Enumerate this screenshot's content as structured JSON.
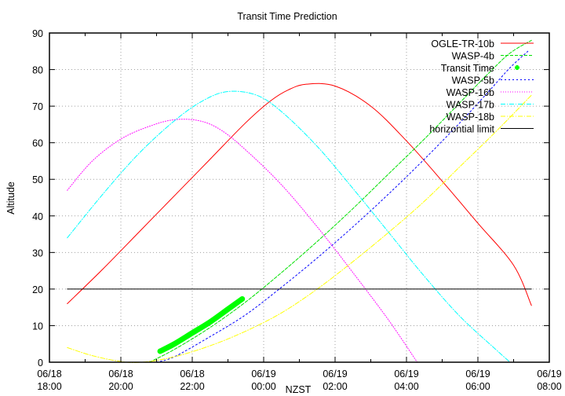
{
  "chart_data": {
    "type": "line",
    "title": "Transit Time Prediction",
    "xlabel": "NZST",
    "ylabel": "Altitude",
    "ylim": [
      0,
      90
    ],
    "yticks": [
      0,
      10,
      20,
      30,
      40,
      50,
      60,
      70,
      80,
      90
    ],
    "xlim_hours": [
      0,
      14
    ],
    "xticks": [
      {
        "h": 0,
        "line1": "06/18",
        "line2": "18:00"
      },
      {
        "h": 2,
        "line1": "06/18",
        "line2": "20:00"
      },
      {
        "h": 4,
        "line1": "06/18",
        "line2": "22:00"
      },
      {
        "h": 6,
        "line1": "06/19",
        "line2": "00:00"
      },
      {
        "h": 8,
        "line1": "06/19",
        "line2": "02:00"
      },
      {
        "h": 10,
        "line1": "06/19",
        "line2": "04:00"
      },
      {
        "h": 12,
        "line1": "06/19",
        "line2": "06:00"
      },
      {
        "h": 14,
        "line1": "06/19",
        "line2": "08:00"
      }
    ],
    "grid": true,
    "legend_position": "top-right",
    "series": [
      {
        "name": "OGLE-TR-10b",
        "color": "#ff0000",
        "dash": "",
        "width": 1,
        "x": [
          0.5,
          1.5,
          2.5,
          3.5,
          4.5,
          5.5,
          6.2,
          6.7,
          7.2,
          8.0,
          9.0,
          10.0,
          11.0,
          12.0,
          13.0,
          13.5
        ],
        "y": [
          16,
          25.5,
          35.5,
          45.5,
          55.5,
          65.5,
          71.5,
          74.5,
          76,
          75.5,
          70,
          60.5,
          49.5,
          38,
          26.5,
          15.5
        ]
      },
      {
        "name": "WASP-4b",
        "color": "#00e000",
        "dash": "4,2",
        "width": 1,
        "x": [
          2.8,
          3.5,
          4.5,
          5.5,
          6.5,
          7.5,
          8.5,
          9.5,
          10.5,
          11.5,
          12.3,
          12.9,
          13.5
        ],
        "y": [
          0,
          3.5,
          9.5,
          16.5,
          24.5,
          33,
          42,
          51.5,
          61,
          71,
          79,
          84.5,
          88
        ]
      },
      {
        "name": "Transit Time",
        "color": "#00ff00",
        "dash": "",
        "width": 7,
        "marker": "plus",
        "x": [
          3.1,
          3.5,
          4.0,
          4.5,
          5.0,
          5.4
        ],
        "y": [
          3,
          5,
          8,
          11,
          14.5,
          17.3
        ]
      },
      {
        "name": "WASP-5b",
        "color": "#0000ff",
        "dash": "2,3",
        "width": 1,
        "x": [
          3.0,
          3.5,
          4.5,
          5.5,
          6.5,
          7.5,
          8.5,
          9.5,
          10.5,
          11.5,
          12.3,
          12.9,
          13.4
        ],
        "y": [
          0,
          1.5,
          7,
          13,
          20.5,
          28.5,
          37,
          46,
          55.5,
          65.5,
          74,
          80.5,
          85
        ]
      },
      {
        "name": "WASP-16b",
        "color": "#ff00ff",
        "dash": "1,2",
        "width": 1,
        "x": [
          0.5,
          1.2,
          2.0,
          2.8,
          3.5,
          4.2,
          4.8,
          5.5,
          6.5,
          7.5,
          8.5,
          9.5,
          10.3
        ],
        "y": [
          47,
          55,
          61,
          64.5,
          66.3,
          66,
          63.5,
          58,
          48.5,
          37,
          24.5,
          11.5,
          0
        ]
      },
      {
        "name": "WASP-17b",
        "color": "#00ffff",
        "dash": "6,2,1,2",
        "width": 1,
        "x": [
          0.5,
          1.5,
          2.5,
          3.5,
          4.3,
          5.0,
          5.8,
          6.5,
          7.5,
          8.5,
          9.5,
          10.5,
          11.5,
          12.5,
          12.9
        ],
        "y": [
          34,
          46,
          57,
          66,
          71.5,
          74,
          73,
          68.5,
          59,
          47.5,
          35.5,
          23.5,
          12.5,
          3.5,
          0
        ]
      },
      {
        "name": "WASP-18b",
        "color": "#ffff00",
        "dash": "6,2,1,2",
        "width": 1,
        "x": [
          0.5,
          1.2,
          2.0,
          2.6,
          3.5,
          4.5,
          5.5,
          6.5,
          7.5,
          8.5,
          9.5,
          10.5,
          11.5,
          12.5,
          13.5
        ],
        "y": [
          4,
          1.8,
          0.2,
          0,
          1.5,
          4.5,
          8.5,
          13.5,
          20,
          27.5,
          35.5,
          44,
          53.5,
          63,
          73
        ]
      },
      {
        "name": "horizontial limit",
        "color": "#000000",
        "dash": "",
        "width": 1,
        "x": [
          0.5,
          13.5
        ],
        "y": [
          20,
          20
        ]
      }
    ]
  }
}
